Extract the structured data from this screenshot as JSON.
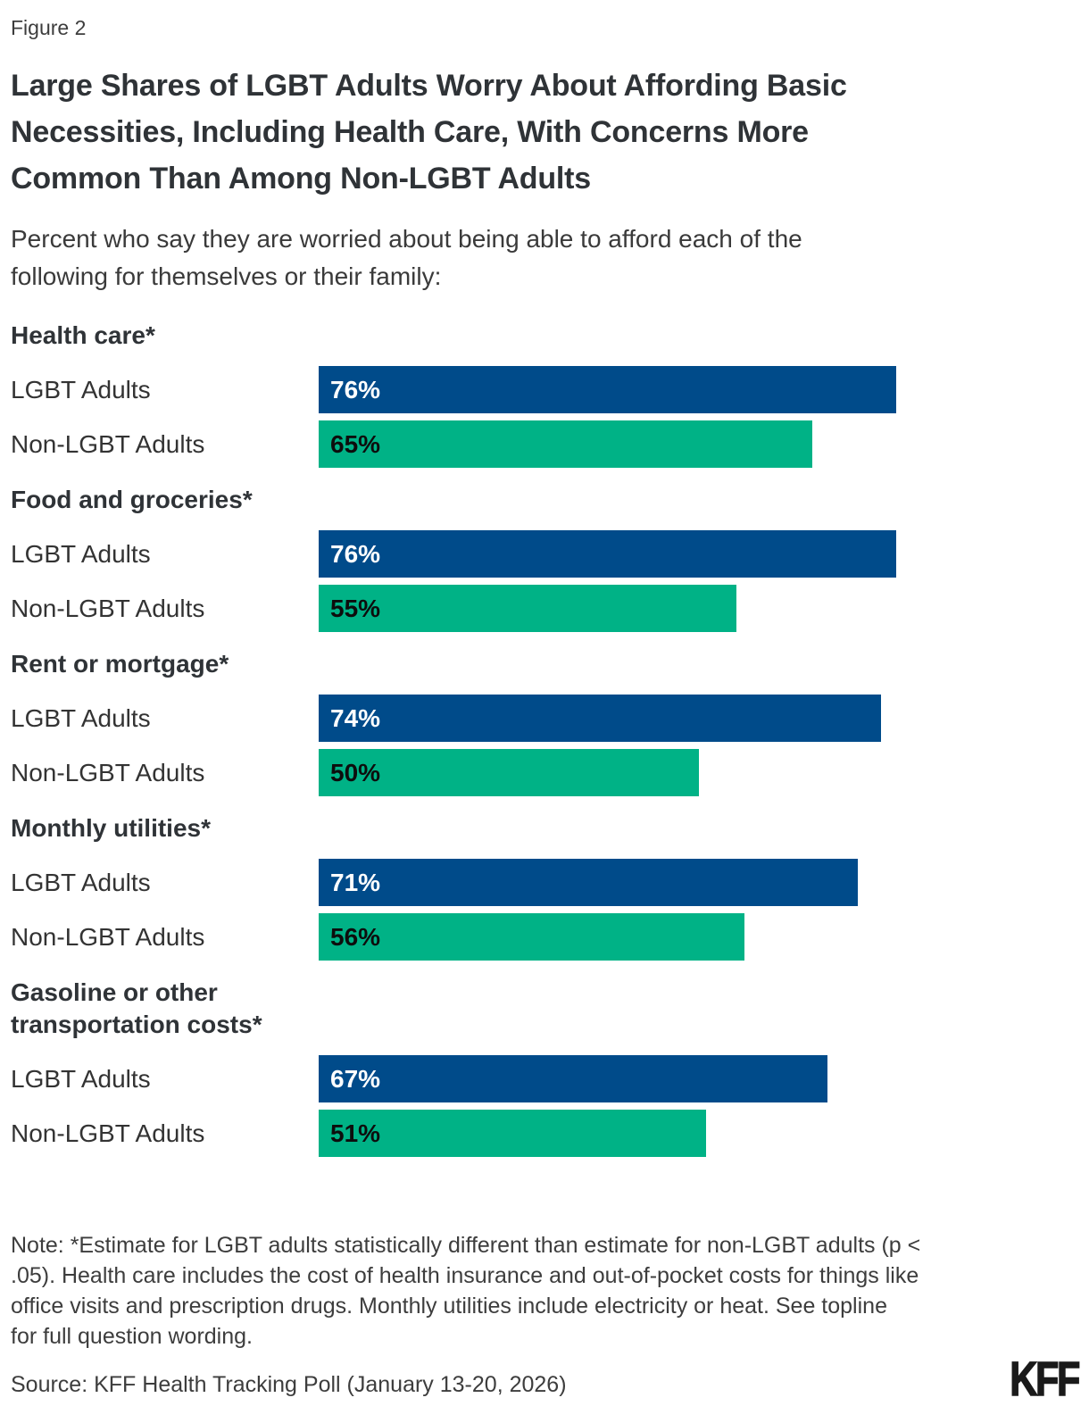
{
  "figure_label": "Figure 2",
  "title": "Large Shares of LGBT Adults Worry About Affording Basic\nNecessities, Including Health Care, With Concerns More\nCommon Than Among Non-LGBT Adults",
  "subtitle": "Percent who say they are worried about being able to afford each of the\nfollowing for themselves or their family:",
  "note": "Note: *Estimate for LGBT adults statistically different than estimate for non-LGBT adults (p <\n.05). Health care includes the cost of health insurance and out-of-pocket costs for things like\noffice visits and prescription drugs. Monthly utilities include electricity or heat. See topline\nfor full question wording.",
  "source": "Source: KFF Health Tracking Poll (January 13-20, 2026)",
  "logo": "KFF",
  "colors": {
    "lgbt_bar": "#004b8a",
    "non_lgbt_bar": "#00b286",
    "lgbt_bar_text": "#ffffff",
    "non_lgbt_bar_text": "#0d0d0d",
    "title_text": "#2f3337",
    "body_text": "#3a3a3a"
  },
  "chart_data": {
    "type": "bar",
    "orientation": "horizontal",
    "xlim": [
      0,
      100
    ],
    "value_suffix": "%",
    "grid": false,
    "legend_position": "none",
    "categories": [
      "Health care*",
      "Food and groceries*",
      "Rent or mortgage*",
      "Monthly utilities*",
      "Gasoline or other\ntransportation costs*"
    ],
    "series": [
      {
        "name": "LGBT Adults",
        "color": "#004b8a",
        "text_color": "#ffffff",
        "values": [
          76,
          76,
          74,
          71,
          67
        ]
      },
      {
        "name": "Non-LGBT Adults",
        "color": "#00b286",
        "text_color": "#0d0d0d",
        "values": [
          65,
          55,
          50,
          56,
          51
        ]
      }
    ]
  }
}
